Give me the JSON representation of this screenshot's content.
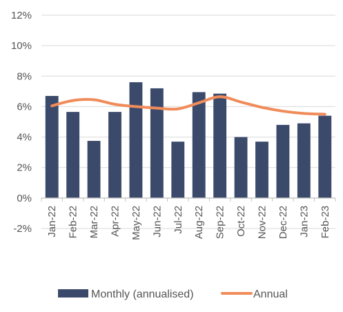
{
  "chart_data": {
    "type": "bar",
    "categories": [
      "Jan-22",
      "Feb-22",
      "Mar-22",
      "Apr-22",
      "May-22",
      "Jun-22",
      "Jul-22",
      "Aug-22",
      "Sep-22",
      "Oct-22",
      "Nov-22",
      "Dec-22",
      "Jan-23",
      "Feb-23"
    ],
    "series": [
      {
        "name": "Monthly (annualised)",
        "kind": "bar",
        "color": "#3B4A6B",
        "values": [
          6.7,
          5.65,
          3.75,
          5.65,
          7.6,
          7.2,
          3.7,
          6.95,
          6.85,
          4.0,
          3.7,
          4.8,
          4.9,
          5.4
        ]
      },
      {
        "name": "Annual",
        "kind": "line",
        "color": "#F08C5A",
        "values": [
          6.05,
          6.4,
          6.45,
          6.15,
          6.0,
          5.9,
          5.85,
          6.25,
          6.65,
          6.3,
          5.95,
          5.7,
          5.55,
          5.5
        ]
      }
    ],
    "ylim": [
      -2,
      12
    ],
    "yticks": [
      -2,
      0,
      2,
      4,
      6,
      8,
      10,
      12
    ],
    "ytick_suffix": "%",
    "title": "",
    "xlabel": "",
    "ylabel": "",
    "grid": true,
    "legend_position": "bottom"
  },
  "colors": {
    "grid": "#D9D9D9",
    "axis": "#BFBFBF",
    "text": "#555555"
  }
}
